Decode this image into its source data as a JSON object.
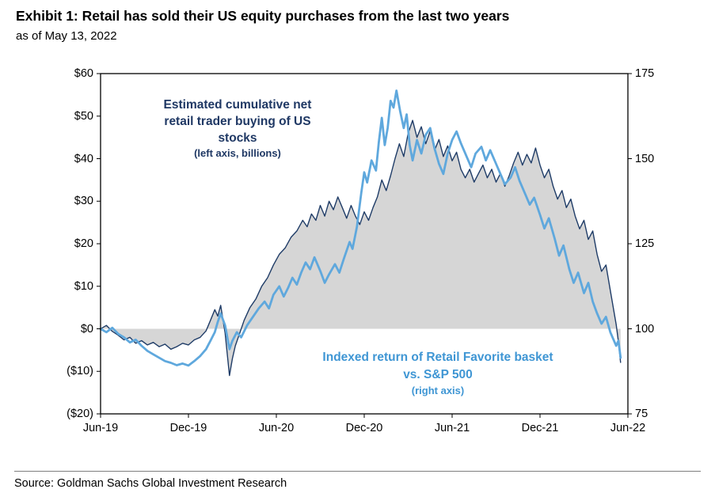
{
  "header": {
    "title": "Exhibit 1: Retail has sold their US equity purchases from the last two years",
    "subtitle": "as of May 13, 2022"
  },
  "footer": {
    "source": "Source: Goldman Sachs Global Investment Research"
  },
  "annotations": {
    "left": {
      "lines": [
        "Estimated cumulative net",
        "retail trader buying of US",
        "stocks"
      ],
      "sub": "(left axis, billions)",
      "color": "#1f3864"
    },
    "right": {
      "lines": [
        "Indexed return of Retail Favorite basket",
        "vs. S&P 500"
      ],
      "sub": "(right axis)",
      "color": "#3f96d4"
    }
  },
  "chart_data": {
    "type": "line",
    "title": "Exhibit 1: Retail has sold their US equity purchases from the last two years",
    "as_of": "as of May 13, 2022",
    "grid": false,
    "legend": "in-plot text annotations",
    "x_axis": {
      "ticks": [
        "Jun-19",
        "Dec-19",
        "Jun-20",
        "Dec-20",
        "Jun-21",
        "Dec-21",
        "Jun-22"
      ],
      "values": [
        0,
        6,
        12,
        18,
        24,
        30,
        36
      ],
      "range_months": [
        0,
        36
      ]
    },
    "left_axis": {
      "ticks": [
        "$60",
        "$50",
        "$40",
        "$30",
        "$20",
        "$10",
        "$0",
        "($10)",
        "($20)"
      ],
      "values": [
        60,
        50,
        40,
        30,
        20,
        10,
        0,
        -10,
        -20
      ],
      "range": [
        -20,
        60
      ]
    },
    "right_axis": {
      "ticks": [
        "175",
        "150",
        "125",
        "100",
        "75"
      ],
      "values": [
        175,
        150,
        125,
        100,
        75
      ],
      "range": [
        75,
        175
      ]
    },
    "series": [
      {
        "name": "Estimated cumulative net retail trader buying of US stocks (left axis, billions)",
        "axis": "left",
        "type": "area-line",
        "color": "#1f3c67",
        "fill": "#d6d6d6",
        "points": [
          [
            0,
            0
          ],
          [
            0.4,
            0.8
          ],
          [
            0.8,
            -0.6
          ],
          [
            1.2,
            -1.5
          ],
          [
            1.6,
            -2.6
          ],
          [
            2,
            -2
          ],
          [
            2.4,
            -3.4
          ],
          [
            2.8,
            -2.8
          ],
          [
            3.2,
            -3.8
          ],
          [
            3.6,
            -3.2
          ],
          [
            4,
            -4.2
          ],
          [
            4.4,
            -3.6
          ],
          [
            4.8,
            -4.8
          ],
          [
            5.2,
            -4.2
          ],
          [
            5.6,
            -3.4
          ],
          [
            6,
            -3.8
          ],
          [
            6.4,
            -2.6
          ],
          [
            6.8,
            -2
          ],
          [
            7.2,
            -0.5
          ],
          [
            7.5,
            2
          ],
          [
            7.8,
            4.5
          ],
          [
            8,
            3
          ],
          [
            8.2,
            5.5
          ],
          [
            8.5,
            -1
          ],
          [
            8.8,
            -11
          ],
          [
            9,
            -7
          ],
          [
            9.2,
            -4
          ],
          [
            9.5,
            -1
          ],
          [
            9.8,
            2
          ],
          [
            10.2,
            5
          ],
          [
            10.6,
            7
          ],
          [
            11,
            10
          ],
          [
            11.4,
            12
          ],
          [
            11.8,
            15
          ],
          [
            12.2,
            17.5
          ],
          [
            12.6,
            19
          ],
          [
            13,
            21.5
          ],
          [
            13.4,
            23
          ],
          [
            13.8,
            25.5
          ],
          [
            14.1,
            24
          ],
          [
            14.4,
            27
          ],
          [
            14.7,
            25.5
          ],
          [
            15,
            29
          ],
          [
            15.3,
            26.5
          ],
          [
            15.6,
            30
          ],
          [
            15.9,
            28
          ],
          [
            16.2,
            31
          ],
          [
            16.5,
            28.5
          ],
          [
            16.8,
            26
          ],
          [
            17.1,
            29
          ],
          [
            17.4,
            26.5
          ],
          [
            17.7,
            24.5
          ],
          [
            18,
            27.5
          ],
          [
            18.3,
            25.5
          ],
          [
            18.6,
            28.5
          ],
          [
            18.9,
            31
          ],
          [
            19.2,
            35
          ],
          [
            19.5,
            32.5
          ],
          [
            19.8,
            36
          ],
          [
            20.1,
            40
          ],
          [
            20.4,
            43.5
          ],
          [
            20.7,
            40.5
          ],
          [
            21,
            46
          ],
          [
            21.3,
            49
          ],
          [
            21.6,
            45
          ],
          [
            21.9,
            47.5
          ],
          [
            22.2,
            43.5
          ],
          [
            22.5,
            46.5
          ],
          [
            22.8,
            42
          ],
          [
            23.1,
            44.5
          ],
          [
            23.4,
            40.5
          ],
          [
            23.7,
            43
          ],
          [
            24,
            39.5
          ],
          [
            24.3,
            41.5
          ],
          [
            24.6,
            37.5
          ],
          [
            24.9,
            35.5
          ],
          [
            25.2,
            37.5
          ],
          [
            25.5,
            34.5
          ],
          [
            25.8,
            36.5
          ],
          [
            26.1,
            38.5
          ],
          [
            26.4,
            35.5
          ],
          [
            26.7,
            37.5
          ],
          [
            27,
            34.5
          ],
          [
            27.3,
            36.5
          ],
          [
            27.6,
            33.5
          ],
          [
            27.9,
            36
          ],
          [
            28.2,
            39
          ],
          [
            28.5,
            41.5
          ],
          [
            28.8,
            38.5
          ],
          [
            29.1,
            41
          ],
          [
            29.4,
            39
          ],
          [
            29.7,
            42.5
          ],
          [
            30,
            38.5
          ],
          [
            30.3,
            35.5
          ],
          [
            30.6,
            37.5
          ],
          [
            30.9,
            33.5
          ],
          [
            31.2,
            30.5
          ],
          [
            31.5,
            32.5
          ],
          [
            31.8,
            28.5
          ],
          [
            32.1,
            30.5
          ],
          [
            32.4,
            26.5
          ],
          [
            32.7,
            23.5
          ],
          [
            33,
            25.5
          ],
          [
            33.3,
            21
          ],
          [
            33.6,
            23
          ],
          [
            33.9,
            17.5
          ],
          [
            34.2,
            13.5
          ],
          [
            34.5,
            15
          ],
          [
            34.8,
            9
          ],
          [
            35,
            5
          ],
          [
            35.2,
            1
          ],
          [
            35.35,
            -3
          ],
          [
            35.5,
            -8
          ]
        ]
      },
      {
        "name": "Indexed return of Retail Favorite basket vs. S&P 500 (right axis)",
        "axis": "right",
        "type": "line",
        "color": "#5fa8dd",
        "points": [
          [
            0,
            100
          ],
          [
            0.4,
            99
          ],
          [
            0.8,
            100.3
          ],
          [
            1.2,
            98.5
          ],
          [
            1.6,
            97.5
          ],
          [
            2,
            96
          ],
          [
            2.4,
            96.8
          ],
          [
            2.8,
            95
          ],
          [
            3.2,
            93.5
          ],
          [
            3.6,
            92.5
          ],
          [
            4,
            91.5
          ],
          [
            4.4,
            90.5
          ],
          [
            4.8,
            90
          ],
          [
            5.2,
            89.3
          ],
          [
            5.6,
            89.8
          ],
          [
            6,
            89.2
          ],
          [
            6.4,
            90.5
          ],
          [
            6.8,
            92
          ],
          [
            7.2,
            94
          ],
          [
            7.5,
            96.5
          ],
          [
            7.8,
            99
          ],
          [
            8,
            102
          ],
          [
            8.2,
            104.5
          ],
          [
            8.5,
            101
          ],
          [
            8.8,
            94
          ],
          [
            9,
            96.5
          ],
          [
            9.3,
            99
          ],
          [
            9.6,
            97.5
          ],
          [
            10,
            101
          ],
          [
            10.4,
            103.5
          ],
          [
            10.8,
            106
          ],
          [
            11.2,
            108
          ],
          [
            11.5,
            106
          ],
          [
            11.8,
            110
          ],
          [
            12.2,
            112.5
          ],
          [
            12.5,
            109.5
          ],
          [
            12.8,
            112
          ],
          [
            13.1,
            115
          ],
          [
            13.4,
            113
          ],
          [
            13.7,
            116.5
          ],
          [
            14,
            119.5
          ],
          [
            14.3,
            117.5
          ],
          [
            14.6,
            121
          ],
          [
            15,
            117
          ],
          [
            15.3,
            113.5
          ],
          [
            15.6,
            116
          ],
          [
            16,
            119
          ],
          [
            16.3,
            116.5
          ],
          [
            16.6,
            120.5
          ],
          [
            17,
            125.5
          ],
          [
            17.2,
            123.5
          ],
          [
            17.5,
            130
          ],
          [
            17.8,
            140
          ],
          [
            18,
            146
          ],
          [
            18.2,
            143
          ],
          [
            18.5,
            149.5
          ],
          [
            18.8,
            146.5
          ],
          [
            19,
            155
          ],
          [
            19.2,
            162
          ],
          [
            19.4,
            154
          ],
          [
            19.6,
            159
          ],
          [
            19.8,
            167
          ],
          [
            20,
            165
          ],
          [
            20.2,
            170
          ],
          [
            20.45,
            164
          ],
          [
            20.7,
            159
          ],
          [
            20.9,
            163
          ],
          [
            21.1,
            154
          ],
          [
            21.3,
            149.5
          ],
          [
            21.6,
            155.5
          ],
          [
            21.9,
            151.5
          ],
          [
            22.2,
            157
          ],
          [
            22.5,
            159
          ],
          [
            22.8,
            153
          ],
          [
            23.1,
            148.5
          ],
          [
            23.4,
            145.5
          ],
          [
            23.7,
            151.5
          ],
          [
            24,
            155.5
          ],
          [
            24.3,
            158
          ],
          [
            24.6,
            154.5
          ],
          [
            25,
            150.5
          ],
          [
            25.3,
            147.5
          ],
          [
            25.6,
            151.5
          ],
          [
            26,
            153.5
          ],
          [
            26.3,
            149.5
          ],
          [
            26.6,
            152.5
          ],
          [
            27,
            148.5
          ],
          [
            27.3,
            145.5
          ],
          [
            27.6,
            142.5
          ],
          [
            28,
            144.5
          ],
          [
            28.3,
            147.5
          ],
          [
            28.6,
            143.5
          ],
          [
            29,
            139.5
          ],
          [
            29.3,
            136.5
          ],
          [
            29.6,
            138.5
          ],
          [
            30,
            133.5
          ],
          [
            30.3,
            129.5
          ],
          [
            30.6,
            132.5
          ],
          [
            31,
            126.5
          ],
          [
            31.3,
            121.5
          ],
          [
            31.6,
            124.5
          ],
          [
            32,
            117.5
          ],
          [
            32.3,
            113.5
          ],
          [
            32.6,
            116.5
          ],
          [
            33,
            110.5
          ],
          [
            33.3,
            113.5
          ],
          [
            33.6,
            108
          ],
          [
            33.9,
            104.5
          ],
          [
            34.2,
            101.5
          ],
          [
            34.5,
            103.5
          ],
          [
            34.8,
            99
          ],
          [
            35,
            97
          ],
          [
            35.2,
            95
          ],
          [
            35.35,
            96.5
          ],
          [
            35.5,
            91.5
          ]
        ]
      }
    ]
  }
}
